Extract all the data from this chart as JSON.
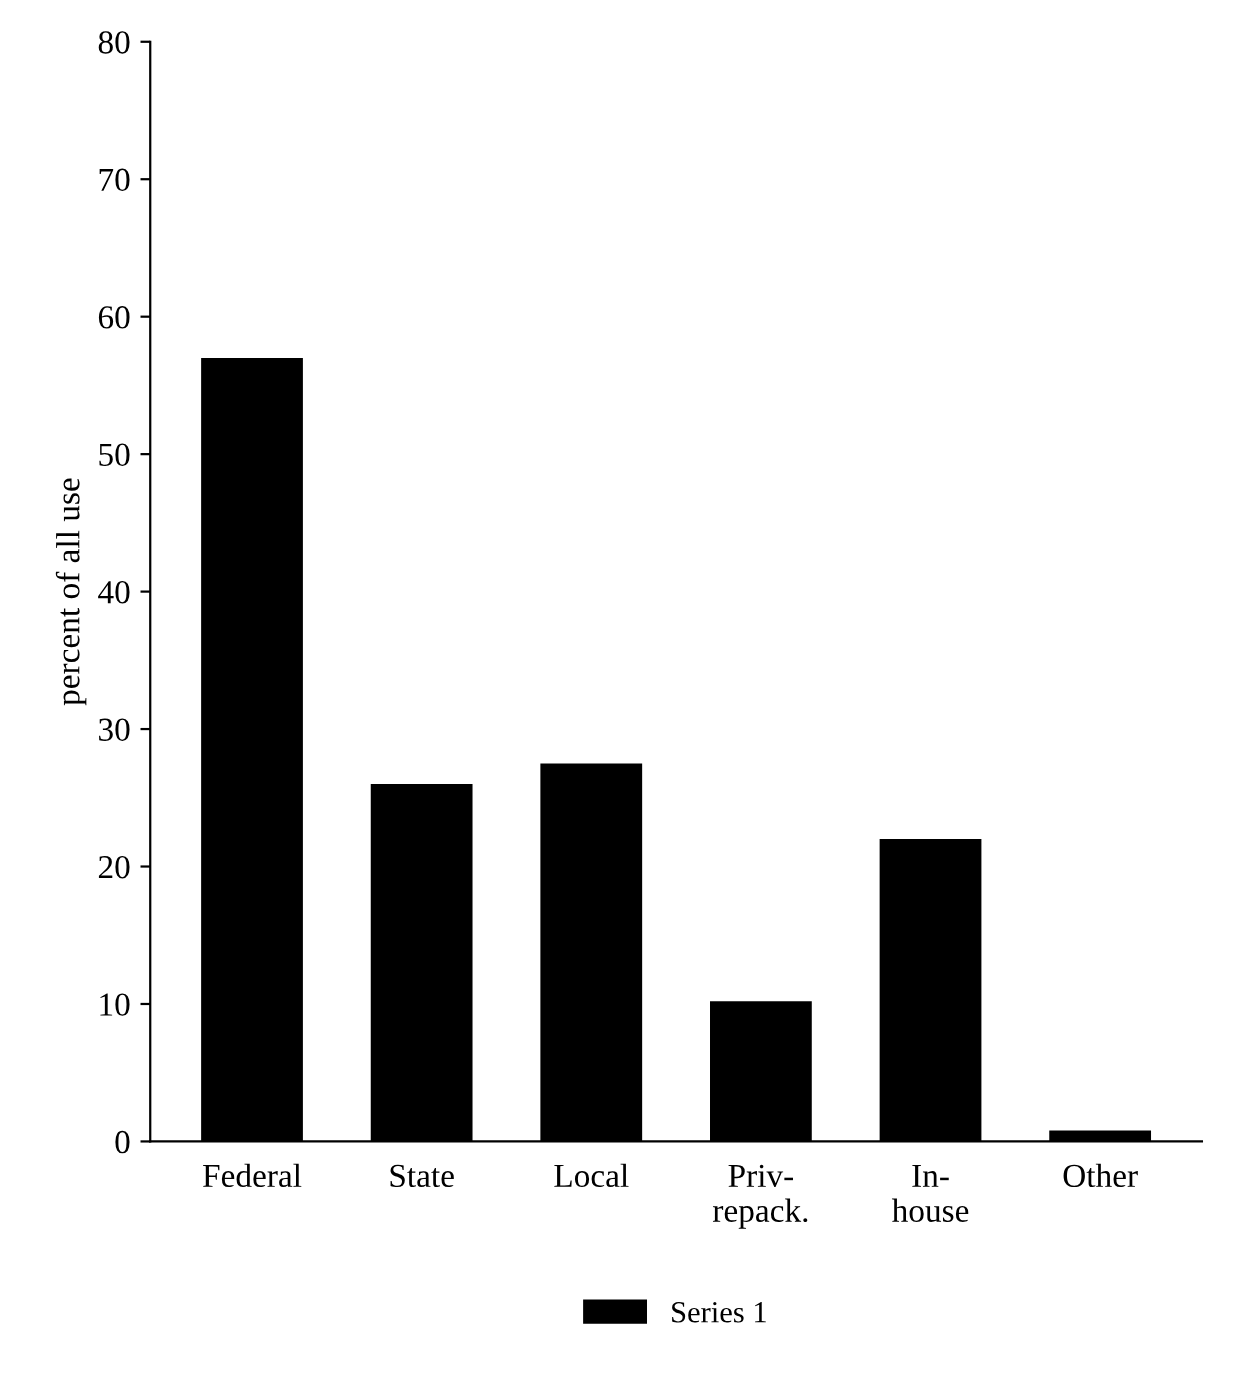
{
  "chart_data": {
    "type": "bar",
    "ylabel": "percent of all use",
    "categories": [
      "Federal",
      "State",
      "Local",
      "Priv-\nrepack.",
      "In-\nhouse",
      "Other"
    ],
    "series": [
      {
        "name": "Series 1",
        "color": "#000000",
        "values": [
          57,
          26,
          27.5,
          10.2,
          22,
          0.8
        ]
      }
    ],
    "ylim": [
      0,
      80
    ],
    "yticks": [
      0,
      10,
      20,
      30,
      40,
      50,
      60,
      70,
      80
    ],
    "grid": false,
    "legend": "bottom"
  }
}
